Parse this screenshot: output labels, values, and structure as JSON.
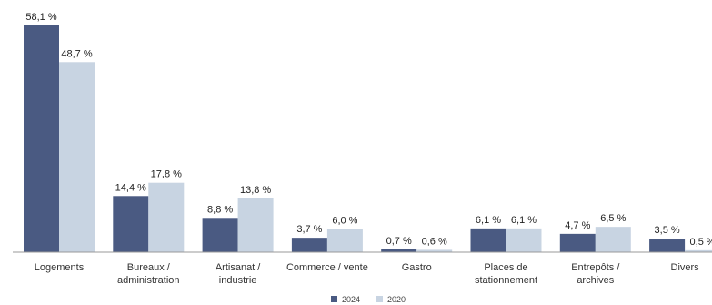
{
  "chart_data": {
    "type": "bar",
    "categories": [
      [
        "Logements"
      ],
      [
        "Bureaux /",
        "administration"
      ],
      [
        "Artisanat /",
        "industrie"
      ],
      [
        "Commerce / vente"
      ],
      [
        "Gastro"
      ],
      [
        "Places de",
        "stationnement"
      ],
      [
        "Entrepôts /",
        "archives"
      ],
      [
        "Divers"
      ]
    ],
    "series": [
      {
        "name": "2024",
        "color": "#4a5a82",
        "values": [
          58.1,
          14.4,
          8.8,
          3.7,
          0.7,
          6.1,
          4.7,
          3.5
        ],
        "labels": [
          "58,1 %",
          "14,4 %",
          "8,8 %",
          "3,7 %",
          "0,7 %",
          "6,1 %",
          "4,7 %",
          "3,5 %"
        ]
      },
      {
        "name": "2020",
        "color": "#c8d4e2",
        "values": [
          48.7,
          17.8,
          13.8,
          6.0,
          0.6,
          6.1,
          6.5,
          0.5
        ],
        "labels": [
          "48,7 %",
          "17,8 %",
          "13,8 %",
          "6,0 %",
          "0,6 %",
          "6,1 %",
          "6,5 %",
          "0,5 %"
        ]
      }
    ],
    "ylim": [
      0,
      58.1
    ],
    "grid": false,
    "legend_position": "bottom-center"
  }
}
